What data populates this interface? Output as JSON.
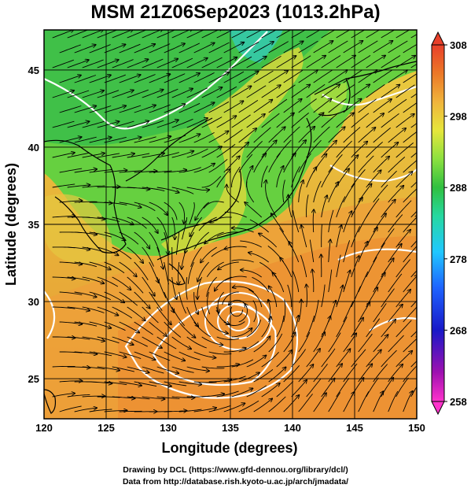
{
  "title": "MSM 21Z06Sep2023 (1013.2hPa)",
  "footer": {
    "line1": "Drawing by DCL (https://www.gfd-dennou.org/library/dcl/)",
    "line2": "Data from http://database.rish.kyoto-u.ac.jp/arch/jmadata/"
  },
  "map": {
    "xlabel": "Longitude (degrees)",
    "ylabel": "Latitude  (degrees)",
    "x_ticks": [
      "120",
      "125",
      "130",
      "135",
      "140",
      "145",
      "150"
    ],
    "y_ticks": [
      "25",
      "30",
      "35",
      "40",
      "45"
    ],
    "lon_range": [
      120,
      150
    ],
    "lat_range": [
      22.4,
      47.6
    ],
    "cyclone_center": {
      "lon": 135.5,
      "lat": 29.4
    }
  },
  "colorbar": {
    "labels": [
      "308",
      "298",
      "288",
      "278",
      "268",
      "258"
    ],
    "min": 258,
    "max": 308,
    "colors": [
      "#ff33cc",
      "#a010b0",
      "#1818c8",
      "#1e64ff",
      "#20c8ff",
      "#26d8a0",
      "#30c040",
      "#8ce040",
      "#e6e63c",
      "#f0b43c",
      "#ec7828",
      "#e8402a"
    ]
  }
}
